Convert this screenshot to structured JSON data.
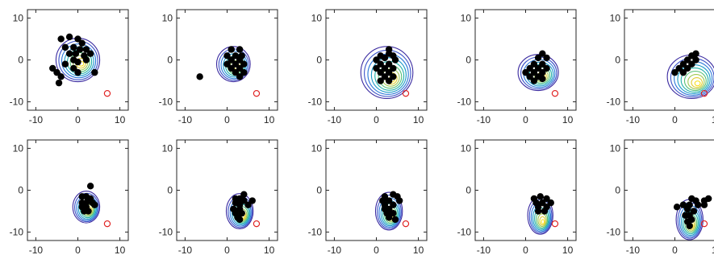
{
  "chart_data": {
    "type": "scatter",
    "rows": 2,
    "cols": 5,
    "xlim": [
      -12,
      12
    ],
    "ylim": [
      -12,
      12
    ],
    "xticks": [
      -10,
      0,
      10
    ],
    "yticks": [
      -10,
      0,
      10
    ],
    "xtick_labels": [
      "-10",
      "0",
      "10"
    ],
    "ytick_labels": [
      "-10",
      "0",
      "10"
    ],
    "grid": false,
    "target": {
      "x": 7,
      "y": -8,
      "color": "#e02020"
    },
    "point_color": "#000000",
    "contour_colors": [
      "#3a2aa0",
      "#3a52c8",
      "#2a78d8",
      "#1898c8",
      "#20b0a8",
      "#58c078",
      "#a0c850",
      "#e0cc30",
      "#f8e020"
    ],
    "panels": [
      {
        "density": {
          "cx": 0,
          "cy": 0,
          "rx": 5.2,
          "ry": 5.2,
          "shift": [
            0.8,
            -0.9
          ]
        },
        "points": [
          [
            -4,
            5
          ],
          [
            -2,
            5.5
          ],
          [
            0,
            5
          ],
          [
            1,
            4
          ],
          [
            -3,
            3
          ],
          [
            -1,
            3
          ],
          [
            0.5,
            2.5
          ],
          [
            2,
            2.5
          ],
          [
            -2,
            1.5
          ],
          [
            -0.5,
            1.5
          ],
          [
            1.5,
            1
          ],
          [
            3,
            1.5
          ],
          [
            -1,
            0
          ],
          [
            0,
            -0.5
          ],
          [
            2,
            0
          ],
          [
            -3,
            -1
          ],
          [
            -6,
            -2
          ],
          [
            -5,
            -3
          ],
          [
            -4,
            -4
          ],
          [
            -4.5,
            -5.5
          ],
          [
            -1,
            -2
          ],
          [
            0,
            -3
          ],
          [
            4,
            -3
          ]
        ]
      },
      {
        "density": {
          "cx": 1.5,
          "cy": -1,
          "rx": 4.0,
          "ry": 4.2,
          "shift": [
            0.7,
            -0.8
          ]
        },
        "points": [
          [
            1,
            2.5
          ],
          [
            3,
            2.5
          ],
          [
            0,
            1
          ],
          [
            2,
            1
          ],
          [
            3.5,
            1
          ],
          [
            1,
            0
          ],
          [
            3,
            0
          ],
          [
            0,
            -1
          ],
          [
            2,
            -1
          ],
          [
            4,
            -1
          ],
          [
            1,
            -2
          ],
          [
            3,
            -2
          ],
          [
            2,
            -3
          ],
          [
            4,
            -3
          ],
          [
            3,
            -4
          ],
          [
            -6.5,
            -4
          ]
        ]
      },
      {
        "density": {
          "cx": 2.5,
          "cy": -3,
          "rx": 6.2,
          "ry": 6.2,
          "shift": [
            1.2,
            -1.6
          ]
        },
        "points": [
          [
            3,
            2.5
          ],
          [
            1,
            1
          ],
          [
            3,
            1.5
          ],
          [
            4,
            1
          ],
          [
            0,
            0
          ],
          [
            2,
            0.5
          ],
          [
            4.5,
            0
          ],
          [
            1,
            -1
          ],
          [
            3,
            -1
          ],
          [
            0,
            -2
          ],
          [
            2,
            -2
          ],
          [
            4,
            -2
          ],
          [
            1,
            -3
          ],
          [
            3,
            -3
          ],
          [
            2,
            -4
          ],
          [
            4,
            -4
          ],
          [
            1,
            -5
          ],
          [
            3,
            -5
          ]
        ]
      },
      {
        "density": {
          "cx": 3,
          "cy": -3,
          "rx": 4.8,
          "ry": 4.3,
          "shift": [
            1.0,
            -1.0
          ]
        },
        "points": [
          [
            4,
            1.5
          ],
          [
            3,
            0.5
          ],
          [
            5,
            0.5
          ],
          [
            2,
            -1
          ],
          [
            4,
            -1
          ],
          [
            1,
            -2
          ],
          [
            3,
            -2
          ],
          [
            5,
            -2
          ],
          [
            0,
            -3
          ],
          [
            2,
            -3
          ],
          [
            4,
            -3
          ],
          [
            1,
            -4
          ],
          [
            3,
            -4
          ],
          [
            2,
            -5
          ],
          [
            4,
            -4.5
          ]
        ]
      },
      {
        "density": {
          "cx": 4,
          "cy": -4,
          "rx": 5.8,
          "ry": 5.2,
          "shift": [
            1.4,
            -1.6
          ]
        },
        "points": [
          [
            5,
            1.5
          ],
          [
            4,
            1
          ],
          [
            3,
            0
          ],
          [
            5,
            0
          ],
          [
            2,
            -1
          ],
          [
            4,
            -1
          ],
          [
            1,
            -2
          ],
          [
            3,
            -2
          ],
          [
            0,
            -3
          ],
          [
            2,
            -3
          ]
        ]
      },
      {
        "density": {
          "cx": 2,
          "cy": -4,
          "rx": 3.2,
          "ry": 3.8,
          "shift": [
            0.7,
            -0.9
          ]
        },
        "points": [
          [
            3,
            1
          ],
          [
            1,
            -1.5
          ],
          [
            2,
            -1.5
          ],
          [
            3,
            -2
          ],
          [
            1,
            -3
          ],
          [
            2,
            -3
          ],
          [
            3.5,
            -3
          ],
          [
            1,
            -4
          ],
          [
            2,
            -4
          ],
          [
            4,
            -3.5
          ],
          [
            1.5,
            -5
          ],
          [
            2.5,
            -5
          ]
        ]
      },
      {
        "density": {
          "cx": 3,
          "cy": -5,
          "rx": 3.2,
          "ry": 4.2,
          "shift": [
            0.8,
            -1.2
          ]
        },
        "points": [
          [
            4,
            -1
          ],
          [
            2,
            -2
          ],
          [
            3,
            -2
          ],
          [
            4,
            -2.5
          ],
          [
            6,
            -2.5
          ],
          [
            2,
            -3
          ],
          [
            3,
            -3.5
          ],
          [
            5,
            -3.5
          ],
          [
            1.5,
            -4.5
          ],
          [
            3,
            -4.5
          ],
          [
            2,
            -5.5
          ],
          [
            3.5,
            -5.5
          ],
          [
            2.5,
            -6.5
          ],
          [
            3,
            -7
          ]
        ]
      },
      {
        "density": {
          "cx": 3,
          "cy": -5,
          "rx": 3.2,
          "ry": 4.5,
          "shift": [
            0.6,
            -1.3
          ]
        },
        "points": [
          [
            2,
            -1.5
          ],
          [
            4,
            -1
          ],
          [
            5,
            -1.5
          ],
          [
            1.5,
            -2.5
          ],
          [
            3,
            -2.5
          ],
          [
            5.5,
            -2.5
          ],
          [
            2,
            -3.5
          ],
          [
            4,
            -3.5
          ],
          [
            2,
            -4.5
          ],
          [
            3,
            -4.5
          ],
          [
            2.5,
            -5.5
          ],
          [
            4,
            -5.5
          ],
          [
            3,
            -6.5
          ],
          [
            4.5,
            -7
          ]
        ]
      },
      {
        "density": {
          "cx": 3.5,
          "cy": -6,
          "rx": 3.0,
          "ry": 4.5,
          "shift": [
            0.6,
            -1.5
          ]
        },
        "points": [
          [
            2,
            -2
          ],
          [
            3.5,
            -1.5
          ],
          [
            5,
            -2
          ],
          [
            2.5,
            -3
          ],
          [
            4,
            -3
          ],
          [
            6,
            -3
          ],
          [
            3,
            -4
          ],
          [
            5,
            -4
          ],
          [
            3,
            -5
          ],
          [
            4.5,
            -5
          ]
        ]
      },
      {
        "density": {
          "cx": 3.5,
          "cy": -7,
          "rx": 3.2,
          "ry": 4.8,
          "shift": [
            0.5,
            -1.5
          ]
        },
        "points": [
          [
            4,
            -2
          ],
          [
            5,
            -2.5
          ],
          [
            7,
            -2.5
          ],
          [
            8,
            -2
          ],
          [
            0.5,
            -4
          ],
          [
            2,
            -3.5
          ],
          [
            3.5,
            -3.5
          ],
          [
            5.5,
            -3.5
          ],
          [
            7,
            -3.5
          ],
          [
            3,
            -4.5
          ],
          [
            4.5,
            -5
          ],
          [
            2.5,
            -6
          ],
          [
            3.5,
            -6
          ],
          [
            4,
            -7
          ],
          [
            3,
            -7.5
          ],
          [
            3.5,
            -8.5
          ]
        ]
      }
    ]
  }
}
